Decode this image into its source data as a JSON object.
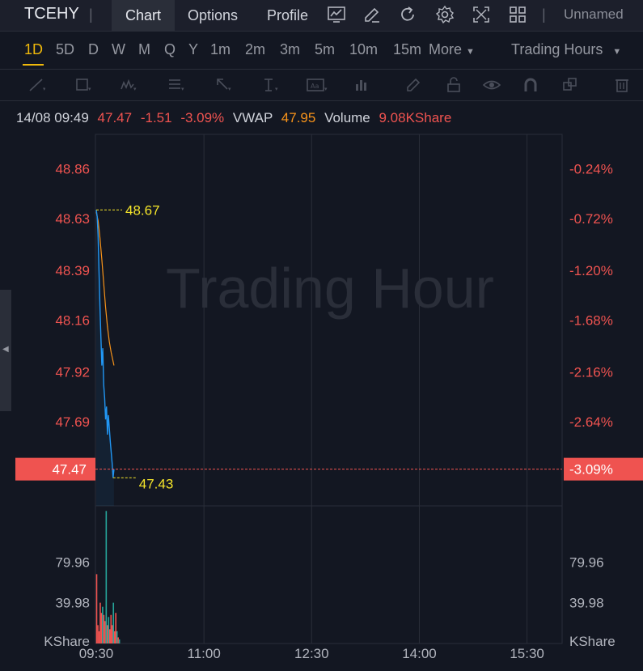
{
  "header": {
    "symbol": "TCEHY",
    "divider": "|",
    "tabs": [
      "Chart",
      "Options",
      "Profile"
    ],
    "active_tab": "Chart",
    "layout_name": "Unnamed",
    "toolbar_icons": [
      "indicator-icon",
      "draw-icon",
      "refresh-icon",
      "settings-icon",
      "fullscreen-icon",
      "layout-grid-icon"
    ]
  },
  "intervals": {
    "items": [
      "1D",
      "5D",
      "D",
      "W",
      "M",
      "Q",
      "Y",
      "1m",
      "2m",
      "3m",
      "5m",
      "10m",
      "15m"
    ],
    "active": "1D",
    "more_label": "More",
    "session_label": "Trading Hours"
  },
  "drawing_tools": [
    "trendline-icon",
    "rectangle-icon",
    "pattern-icon",
    "fib-icon",
    "arrow-icon",
    "text-icon",
    "label-icon",
    "measure-icon",
    "pencil-icon",
    "lock-icon",
    "eye-icon",
    "magnet-icon",
    "layers-icon",
    "trash-icon"
  ],
  "info": {
    "datetime": "14/08 09:49",
    "last": "47.47",
    "change": "-1.51",
    "change_pct": "-3.09%",
    "vwap_label": "VWAP",
    "vwap_value": "47.95",
    "volume_label": "Volume",
    "volume_value": "9.08KShare"
  },
  "colors": {
    "background": "#131722",
    "up": "#26a69a",
    "down": "#ef5350",
    "price_line": "#2196f3",
    "vwap_line": "#f7931a",
    "marker": "#f5e52a",
    "accent": "#f0b90b"
  },
  "chart_data": {
    "type": "line",
    "watermark": "Trading Hour",
    "x_ticks": [
      "09:30",
      "11:00",
      "12:30",
      "14:00",
      "15:30"
    ],
    "x_range_minutes": [
      0,
      390
    ],
    "price_axis": {
      "ticks": [
        "48.86",
        "48.63",
        "48.39",
        "48.16",
        "47.92",
        "47.69"
      ],
      "ylim": [
        47.3,
        49.02
      ],
      "current": "47.47"
    },
    "pct_axis": {
      "ticks": [
        "-0.24%",
        "-0.72%",
        "-1.20%",
        "-1.68%",
        "-2.16%",
        "-2.64%"
      ],
      "current": "-3.09%"
    },
    "volume_axis": {
      "ticks": [
        "79.96",
        "39.98"
      ],
      "unit": "KShare",
      "ylim": [
        0,
        135
      ]
    },
    "high_marker": "48.67",
    "low_marker": "47.43",
    "series": [
      {
        "name": "Price",
        "x": [
          0,
          1,
          2,
          3,
          4,
          5,
          6,
          7,
          8,
          9,
          10,
          11,
          12,
          13,
          14,
          15,
          16,
          17,
          18,
          19
        ],
        "values": [
          48.67,
          48.64,
          48.55,
          48.38,
          48.22,
          48.08,
          47.95,
          48.03,
          47.86,
          47.8,
          47.7,
          47.76,
          47.63,
          47.72,
          47.66,
          47.6,
          47.55,
          47.5,
          47.43,
          47.47
        ]
      },
      {
        "name": "VWAP",
        "x": [
          0,
          2,
          4,
          6,
          8,
          10,
          12,
          14,
          16,
          18,
          19
        ],
        "values": [
          48.66,
          48.62,
          48.54,
          48.44,
          48.33,
          48.22,
          48.13,
          48.06,
          48.01,
          47.97,
          47.95
        ]
      }
    ],
    "volume": {
      "x": [
        0,
        1,
        2,
        3,
        4,
        5,
        6,
        7,
        8,
        9,
        10,
        11,
        12,
        13,
        14,
        15,
        16,
        17,
        18,
        19
      ],
      "values": [
        68,
        18,
        12,
        40,
        30,
        36,
        28,
        22,
        130,
        18,
        26,
        14,
        28,
        18,
        40,
        12,
        30,
        12,
        6,
        4
      ],
      "direction": [
        "down",
        "down",
        "down",
        "down",
        "down",
        "up",
        "down",
        "down",
        "up",
        "down",
        "up",
        "down",
        "down",
        "down",
        "up",
        "down",
        "down",
        "up",
        "down",
        "up"
      ]
    }
  }
}
